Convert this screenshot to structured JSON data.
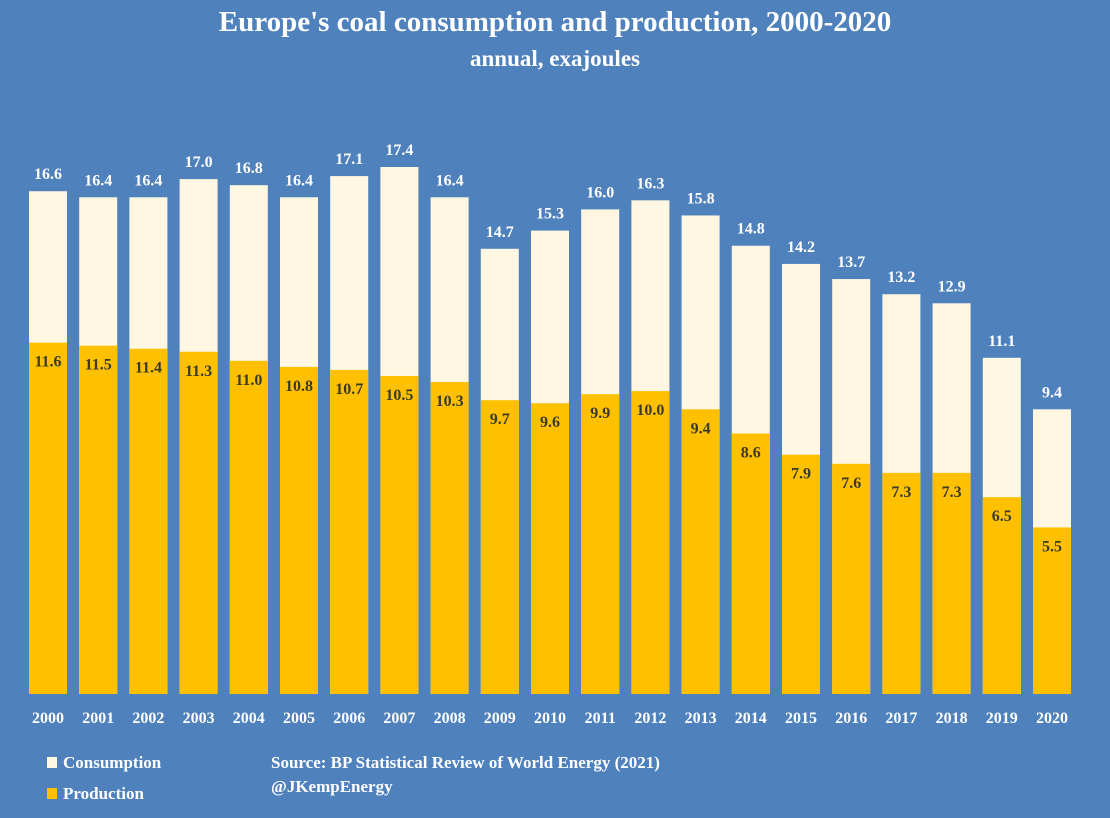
{
  "chart_data": {
    "type": "bar",
    "stacking": "overlapped",
    "title": "Europe's coal consumption and production, 2000-2020",
    "subtitle": "annual, exajoules",
    "xlabel": "",
    "ylabel": "",
    "ylim": [
      0,
      17.4
    ],
    "grid": false,
    "legend_position": "bottom-left",
    "categories": [
      "2000",
      "2001",
      "2002",
      "2003",
      "2004",
      "2005",
      "2006",
      "2007",
      "2008",
      "2009",
      "2010",
      "2011",
      "2012",
      "2013",
      "2014",
      "2015",
      "2016",
      "2017",
      "2018",
      "2019",
      "2020"
    ],
    "series": [
      {
        "name": "Consumption",
        "color": "#FFF7E1",
        "values": [
          16.6,
          16.4,
          16.4,
          17.0,
          16.8,
          16.4,
          17.1,
          17.4,
          16.4,
          14.7,
          15.3,
          16.0,
          16.3,
          15.8,
          14.8,
          14.2,
          13.7,
          13.2,
          12.9,
          11.1,
          9.4
        ]
      },
      {
        "name": "Production",
        "color": "#FFC000",
        "values": [
          11.6,
          11.5,
          11.4,
          11.3,
          11.0,
          10.8,
          10.7,
          10.5,
          10.3,
          9.7,
          9.6,
          9.9,
          10.0,
          9.4,
          8.6,
          7.9,
          7.6,
          7.3,
          7.3,
          6.5,
          5.5
        ]
      }
    ],
    "annotations": [
      "Source: BP Statistical Review of World Energy (2021)",
      "@JKempEnergy"
    ]
  },
  "colors": {
    "background": "#4F81BD",
    "consumption": "#FFF7E1",
    "production": "#FFC000",
    "label_light": "#FFFFFF",
    "label_dark": "#3A3A2A"
  },
  "legend": {
    "consumption": "Consumption",
    "production": "Production"
  },
  "footer": {
    "source": "Source: BP Statistical Review of World Energy (2021)",
    "handle": "@JKempEnergy"
  }
}
